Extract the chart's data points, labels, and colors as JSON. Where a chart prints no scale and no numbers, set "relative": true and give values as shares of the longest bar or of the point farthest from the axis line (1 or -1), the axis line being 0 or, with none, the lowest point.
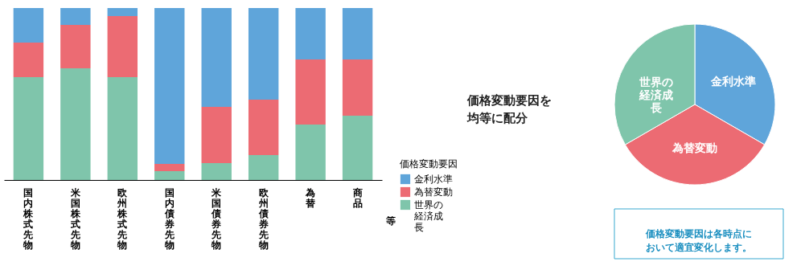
{
  "chart_data": [
    {
      "type": "bar",
      "stacked": true,
      "relative": true,
      "categories": [
        "国内株式先物",
        "米国株式先物",
        "欧州株式先物",
        "国内債券先物",
        "米国債券先物",
        "欧州債券先物",
        "為替",
        "商品"
      ],
      "series": [
        {
          "name": "世界の経済成長",
          "color": "#7fc5ab",
          "values": [
            0.598,
            0.65,
            0.598,
            0.051,
            0.098,
            0.145,
            0.322,
            0.374
          ]
        },
        {
          "name": "為替変動",
          "color": "#ec6b73",
          "values": [
            0.201,
            0.252,
            0.355,
            0.042,
            0.327,
            0.322,
            0.379,
            0.327
          ]
        },
        {
          "name": "金利水準",
          "color": "#5fa5da",
          "values": [
            0.201,
            0.098,
            0.047,
            0.907,
            0.575,
            0.533,
            0.299,
            0.299
          ]
        }
      ],
      "legend_title": "価格変動要因",
      "legend": "right",
      "annotations": [
        "等"
      ]
    },
    {
      "type": "pie",
      "categories": [
        "金利水準",
        "為替変動",
        "世界の経済成長"
      ],
      "values": [
        33.33,
        33.33,
        33.34
      ],
      "colors": [
        "#5fa5da",
        "#ec6b73",
        "#7fc5ab"
      ],
      "annotations": [
        "価格変動要因を均等に配分",
        "価格変動要因は各時点において適宜変化します。"
      ]
    }
  ]
}
